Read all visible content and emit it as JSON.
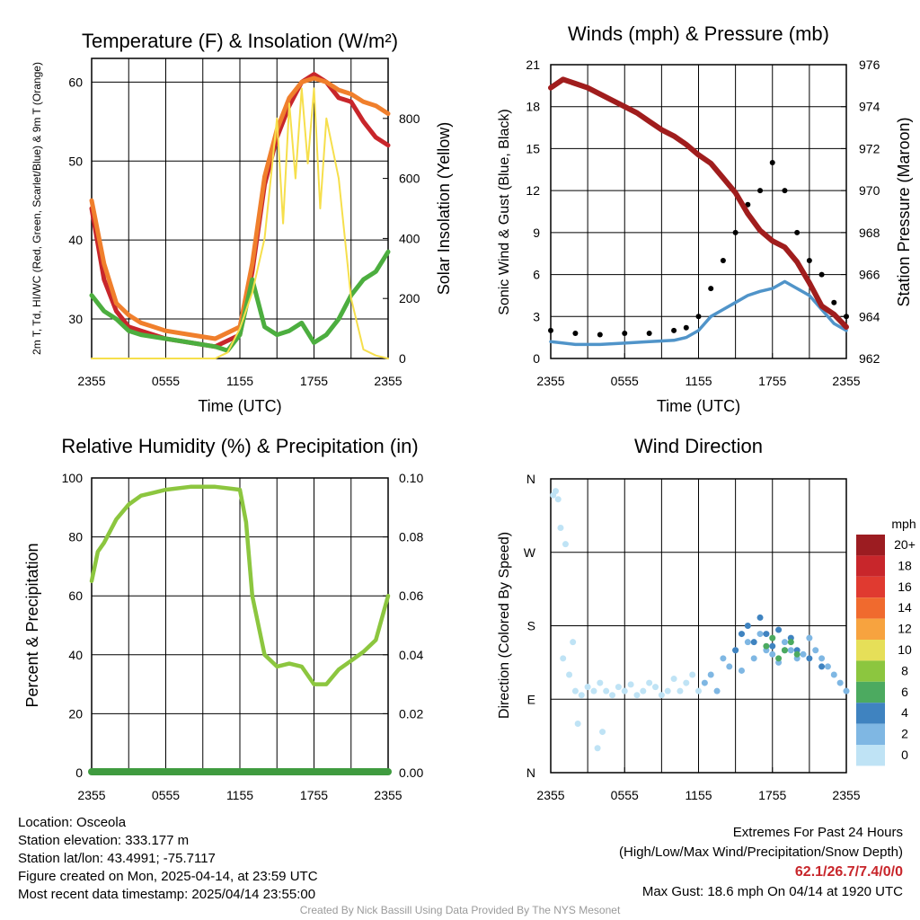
{
  "colors": {
    "red": "#c8262b",
    "orange": "#f07f2c",
    "green": "#4cae3f",
    "yellow": "#f6df4c",
    "steel": "#5094c9",
    "black": "#000000",
    "maroon": "#a01d1d",
    "rh": "#8cc63f",
    "precip": "#3f9b3f"
  },
  "chart_data": [
    {
      "type": "line",
      "title": "Temperature (F) & Insolation (W/m²)",
      "xlabel": "Time (UTC)",
      "ylabel": "2m T, Td, HI/WC (Red, Green, Scarlet/Blue) & 9m T (Orange)",
      "ylabel_right": "Solar Insolation (Yellow)",
      "x_ticks": [
        "2355",
        "0555",
        "1155",
        "1755",
        "2355"
      ],
      "ylim": [
        25,
        63
      ],
      "y_ticks": [
        30,
        40,
        50,
        60
      ],
      "ylim_right": [
        0,
        1000
      ],
      "y_ticks_right": [
        0,
        200,
        400,
        600,
        800
      ],
      "series": [
        {
          "name": "2m T",
          "color": "red",
          "x": [
            0,
            1,
            2,
            3,
            4,
            5,
            6,
            8,
            10,
            12,
            13,
            14,
            15,
            16,
            17,
            18,
            19,
            20,
            21,
            22,
            23,
            24
          ],
          "y": [
            44,
            35,
            31,
            29,
            28.5,
            28,
            27.5,
            27,
            26.5,
            28,
            36,
            47,
            53,
            57,
            60,
            61,
            60,
            58,
            57.5,
            55,
            53,
            52
          ]
        },
        {
          "name": "9m T",
          "color": "orange",
          "x": [
            0,
            1,
            2,
            3,
            4,
            5,
            6,
            8,
            10,
            12,
            13,
            14,
            15,
            16,
            17,
            18,
            19,
            20,
            21,
            22,
            23,
            24
          ],
          "y": [
            45,
            37,
            32,
            30.5,
            29.5,
            29,
            28.5,
            28,
            27.5,
            29,
            37,
            48,
            54,
            58,
            60,
            60.5,
            60,
            59,
            58.5,
            57.5,
            57,
            56
          ]
        },
        {
          "name": "Td",
          "color": "green",
          "x": [
            0,
            1,
            2,
            3,
            4,
            6,
            8,
            10,
            11,
            12,
            13,
            14,
            15,
            16,
            17,
            18,
            19,
            20,
            21,
            22,
            23,
            24
          ],
          "y": [
            33,
            31,
            30,
            28.5,
            28,
            27.5,
            27,
            26.5,
            26,
            28,
            35,
            29,
            28,
            28.5,
            29.5,
            27,
            28,
            30,
            33,
            35,
            36,
            38.5
          ]
        },
        {
          "name": "Solar Insolation",
          "color": "yellow",
          "axis": "right",
          "x": [
            0,
            10,
            11,
            12,
            13,
            14,
            15,
            15.5,
            16,
            16.5,
            17,
            17.5,
            18,
            18.5,
            19,
            20,
            21,
            22,
            23,
            24
          ],
          "y": [
            0,
            0,
            20,
            100,
            220,
            400,
            800,
            450,
            850,
            600,
            900,
            650,
            900,
            500,
            800,
            600,
            200,
            30,
            10,
            0
          ]
        }
      ]
    },
    {
      "type": "scatter",
      "title": "Winds (mph) & Pressure (mb)",
      "xlabel": "Time (UTC)",
      "ylabel": "Sonic Wind & Gust (Blue, Black)",
      "ylabel_right": "Station Pressure (Maroon)",
      "x_ticks": [
        "2355",
        "0555",
        "1155",
        "1755",
        "2355"
      ],
      "ylim": [
        0,
        21
      ],
      "y_ticks": [
        0,
        3,
        6,
        9,
        12,
        15,
        18,
        21
      ],
      "ylim_right": [
        962,
        976
      ],
      "y_ticks_right": [
        962,
        964,
        966,
        968,
        970,
        972,
        974,
        976
      ],
      "series": [
        {
          "name": "Sonic Wind",
          "color": "steel",
          "x": [
            0,
            2,
            4,
            6,
            8,
            10,
            11,
            12,
            13,
            14,
            15,
            16,
            17,
            18,
            19,
            20,
            21,
            22,
            23,
            24
          ],
          "y": [
            1.2,
            1,
            1,
            1.1,
            1.2,
            1.3,
            1.5,
            2,
            3,
            3.5,
            4,
            4.5,
            4.8,
            5,
            5.5,
            5,
            4.5,
            3.5,
            2.5,
            2
          ]
        },
        {
          "name": "Gust",
          "color": "black",
          "x": [
            0,
            2,
            4,
            6,
            8,
            10,
            11,
            12,
            13,
            14,
            15,
            16,
            17,
            18,
            19,
            20,
            21,
            22,
            23,
            24
          ],
          "y": [
            2,
            1.8,
            1.7,
            1.8,
            1.8,
            2,
            2.2,
            3,
            5,
            7,
            9,
            11,
            12,
            14,
            12,
            9,
            7,
            6,
            4,
            3
          ]
        },
        {
          "name": "Station Pressure",
          "color": "maroon",
          "axis": "right",
          "x": [
            0,
            1,
            2,
            3,
            4,
            5,
            6,
            7,
            8,
            9,
            10,
            11,
            12,
            13,
            14,
            15,
            16,
            17,
            18,
            19,
            20,
            21,
            22,
            23,
            24
          ],
          "y": [
            974.9,
            975.3,
            975.1,
            974.9,
            974.6,
            974.3,
            974.0,
            973.7,
            973.3,
            972.9,
            972.6,
            972.2,
            971.7,
            971.3,
            970.6,
            969.9,
            968.9,
            968.1,
            967.6,
            967.3,
            966.6,
            965.6,
            964.5,
            964.1,
            963.5
          ]
        }
      ]
    },
    {
      "type": "line",
      "title": "Relative Humidity (%) & Precipitation (in)",
      "ylabel": "Percent & Precipitation",
      "x_ticks": [
        "2355",
        "0555",
        "1155",
        "1755",
        "2355"
      ],
      "ylim": [
        0,
        100
      ],
      "y_ticks": [
        0,
        20,
        40,
        60,
        80,
        100
      ],
      "ylim_right": [
        0,
        0.1
      ],
      "y_ticks_right": [
        "0.00",
        "0.02",
        "0.04",
        "0.06",
        "0.08",
        "0.10"
      ],
      "series": [
        {
          "name": "Relative Humidity",
          "color": "rh",
          "x": [
            0,
            0.5,
            1,
            2,
            3,
            4,
            5,
            6,
            8,
            10,
            12,
            12.5,
            13,
            14,
            15,
            16,
            17,
            18,
            19,
            20,
            21,
            22,
            23,
            24
          ],
          "y": [
            65,
            75,
            78,
            86,
            91,
            94,
            95,
            96,
            97,
            97,
            96,
            85,
            60,
            40,
            36,
            37,
            36,
            30,
            30,
            35,
            38,
            41,
            45,
            60
          ]
        },
        {
          "name": "Precipitation",
          "color": "precip",
          "axis": "right",
          "x": [
            0,
            24
          ],
          "y": [
            0,
            0
          ]
        }
      ]
    },
    {
      "type": "scatter",
      "title": "Wind Direction",
      "ylabel": "Direction (Colored By Speed)",
      "x_ticks": [
        "2355",
        "0555",
        "1155",
        "1755",
        "2355"
      ],
      "y_ticks": [
        "N",
        "E",
        "S",
        "W",
        "N"
      ],
      "ylim": [
        0,
        360
      ],
      "legend_unit": "mph",
      "legend_labels": [
        "20+",
        "18",
        "16",
        "14",
        "12",
        "10",
        "8",
        "6",
        "4",
        "2",
        "0"
      ],
      "legend_colors": [
        "#9c1c21",
        "#c8262b",
        "#e03a30",
        "#f06a2e",
        "#f7a33f",
        "#e6df58",
        "#8cc63f",
        "#4caa60",
        "#3f83c0",
        "#7fb7e3",
        "#bfe3f5"
      ],
      "series": [
        {
          "name": "0-2 mph",
          "color": "#bfe3f5",
          "x": [
            0.2,
            0.4,
            0.6,
            0.8,
            1.2,
            1.5,
            2,
            2.5,
            3,
            3.5,
            4,
            4.5,
            5,
            5.5,
            6,
            6.5,
            7,
            7.5,
            8,
            8.5,
            9,
            9.5,
            10,
            10.5,
            11,
            11.5,
            12,
            2.2,
            3.8,
            4.2,
            1,
            1.8
          ],
          "y": [
            340,
            345,
            335,
            300,
            280,
            120,
            100,
            95,
            105,
            100,
            110,
            100,
            95,
            105,
            100,
            108,
            95,
            100,
            110,
            105,
            95,
            100,
            115,
            100,
            110,
            120,
            100,
            60,
            30,
            50,
            140,
            160
          ]
        },
        {
          "name": "2-4 mph",
          "color": "#7fb7e3",
          "x": [
            12.5,
            13,
            13.5,
            14,
            14.5,
            15,
            15.5,
            16,
            16.5,
            17,
            17.5,
            18,
            18.5,
            19,
            19.5,
            20,
            20.5,
            21,
            21.5,
            22,
            22.5,
            23,
            23.5,
            24
          ],
          "y": [
            110,
            120,
            100,
            140,
            130,
            150,
            125,
            160,
            140,
            170,
            150,
            145,
            135,
            160,
            150,
            140,
            145,
            165,
            150,
            140,
            130,
            120,
            110,
            100
          ]
        },
        {
          "name": "4-6 mph",
          "color": "#3f83c0",
          "x": [
            15,
            15.5,
            16,
            16.5,
            17,
            17.5,
            18,
            18.5,
            19,
            19.5,
            20,
            21,
            22
          ],
          "y": [
            150,
            170,
            180,
            160,
            190,
            170,
            155,
            175,
            150,
            165,
            150,
            140,
            130
          ]
        },
        {
          "name": "6-8 mph",
          "color": "#4caa60",
          "x": [
            17.5,
            18,
            18.5,
            19,
            19.5,
            20
          ],
          "y": [
            155,
            165,
            140,
            150,
            160,
            145
          ]
        }
      ]
    }
  ],
  "footer": {
    "location": "Location: Osceola",
    "elevation": "Station elevation: 333.177 m",
    "latlon": "Station lat/lon: 43.4991; -75.7117",
    "created": "Figure created on Mon, 2025-04-14, at 23:59 UTC",
    "recent": "Most recent data timestamp: 2025/04/14 23:55:00",
    "extremes_title": "Extremes For Past 24 Hours",
    "extremes_fields": "(High/Low/Max Wind/Precipitation/Snow Depth)",
    "extremes_values": "62.1/26.7/7.4/0/0",
    "max_gust": "Max Gust: 18.6 mph On 04/14 at 1920 UTC",
    "credit": "Created By Nick Bassill Using Data Provided By The NYS Mesonet"
  }
}
